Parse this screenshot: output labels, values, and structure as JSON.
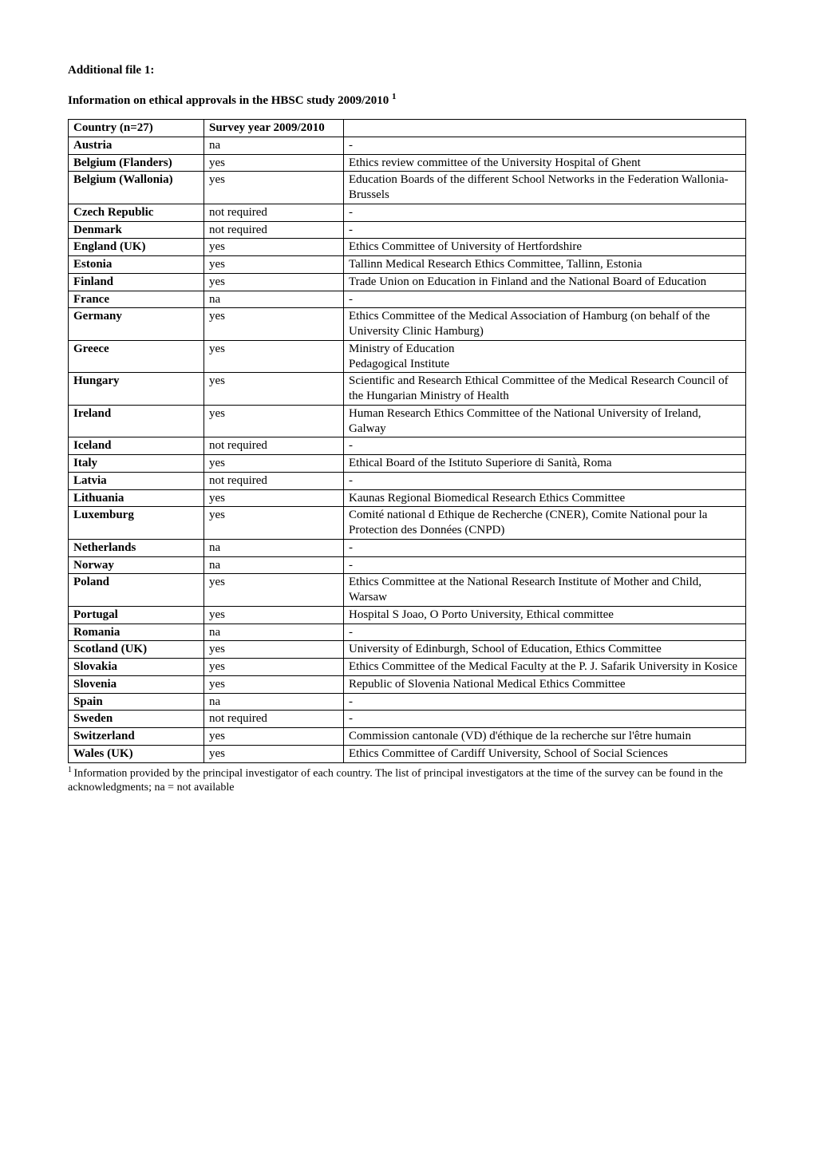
{
  "headings": {
    "title1": "Additional file 1:",
    "title2_prefix": "Information on ethical approvals in the HBSC study 2009/2010 ",
    "title2_sup": "1"
  },
  "table": {
    "header": {
      "country": "Country (n=27)",
      "survey": "Survey year 2009/2010",
      "details": ""
    },
    "rows": [
      {
        "country": "Austria",
        "survey": "na",
        "details": "-"
      },
      {
        "country": "Belgium (Flanders)",
        "survey": "  yes",
        "details": "Ethics review committee of the University Hospital of Ghent"
      },
      {
        "country": "Belgium (Wallonia)",
        "survey": "yes",
        "details": "Education Boards of the different School Networks in the Federation Wallonia-Brussels"
      },
      {
        "country": "Czech Republic",
        "survey": "not required",
        "details": "-"
      },
      {
        "country": "Denmark",
        "survey": "not required",
        "details": "-"
      },
      {
        "country": "England (UK)",
        "survey": "yes",
        "details": "Ethics Committee of University of Hertfordshire"
      },
      {
        "country": "Estonia",
        "survey": "yes",
        "details": "Tallinn Medical Research Ethics Committee, Tallinn, Estonia"
      },
      {
        "country": "Finland",
        "survey": "yes",
        "details": "Trade Union on Education in Finland and the National Board of Education"
      },
      {
        "country": "France",
        "survey": "na",
        "details": "-"
      },
      {
        "country": "Germany",
        "survey": "yes",
        "details": "Ethics Committee of the Medical Association of Hamburg (on behalf of the University Clinic Hamburg)"
      },
      {
        "country": "Greece",
        "survey": "yes",
        "details": "Ministry of Education\nPedagogical Institute"
      },
      {
        "country": "Hungary",
        "survey": "yes",
        "details": " Scientific and Research Ethical Committee of the Medical Research Council of the Hungarian Ministry of Health"
      },
      {
        "country": "Ireland",
        "survey": "yes",
        "details": "Human Research Ethics Committee of the National University of Ireland, Galway"
      },
      {
        "country": "Iceland",
        "survey": "not required",
        "details": "-"
      },
      {
        "country": "Italy",
        "survey": "yes",
        "details": "Ethical Board of the Istituto Superiore di Sanità, Roma"
      },
      {
        "country": "Latvia",
        "survey": "not required",
        "details": "-"
      },
      {
        "country": "Lithuania",
        "survey": "yes",
        "details": "Kaunas Regional Biomedical Research Ethics Committee"
      },
      {
        "country": "Luxemburg",
        "survey": "yes",
        "details": "Comité national d Ethique de Recherche (CNER), Comite National pour la Protection des Données (CNPD)"
      },
      {
        "country": "Netherlands",
        "survey": "na",
        "details": "-"
      },
      {
        "country": "Norway",
        "survey": "na",
        "details": "-"
      },
      {
        "country": "Poland",
        "survey": "yes",
        "details": "Ethics Committee at the National Research Institute of Mother and Child, Warsaw"
      },
      {
        "country": "Portugal",
        "survey": "yes",
        "details": "Hospital S Joao, O Porto University, Ethical committee"
      },
      {
        "country": "Romania",
        "survey": "na",
        "details": "-"
      },
      {
        "country": "Scotland (UK)",
        "survey": "yes",
        "details": "University of Edinburgh, School of Education, Ethics Committee"
      },
      {
        "country": "Slovakia",
        "survey": "yes",
        "details": "Ethics Committee of the Medical Faculty at the P. J. Safarik University in Kosice"
      },
      {
        "country": "Slovenia",
        "survey": "yes",
        "details": "Republic of  Slovenia National Medical Ethics Committee"
      },
      {
        "country": "Spain",
        "survey": "na",
        "details": "-"
      },
      {
        "country": "Sweden",
        "survey": "not required",
        "details": "-"
      },
      {
        "country": "Switzerland",
        "survey": "yes",
        "details": "Commission cantonale (VD) d'éthique de la recherche sur l'être humain"
      },
      {
        "country": "Wales (UK)",
        "survey": "yes",
        "details": "Ethics Committee of Cardiff University, School of Social Sciences"
      }
    ]
  },
  "footnote": {
    "sup": "1 ",
    "text": "Information provided by the principal investigator of each country. The list of principal investigators at the time of the survey can be found in the acknowledgments; na = not available"
  },
  "styling": {
    "background_color": "#ffffff",
    "text_color": "#000000",
    "border_color": "#000000",
    "font_family": "Times New Roman",
    "body_font_size": 15,
    "footnote_font_size": 14,
    "col_widths": {
      "country": 170,
      "survey": 175
    }
  }
}
